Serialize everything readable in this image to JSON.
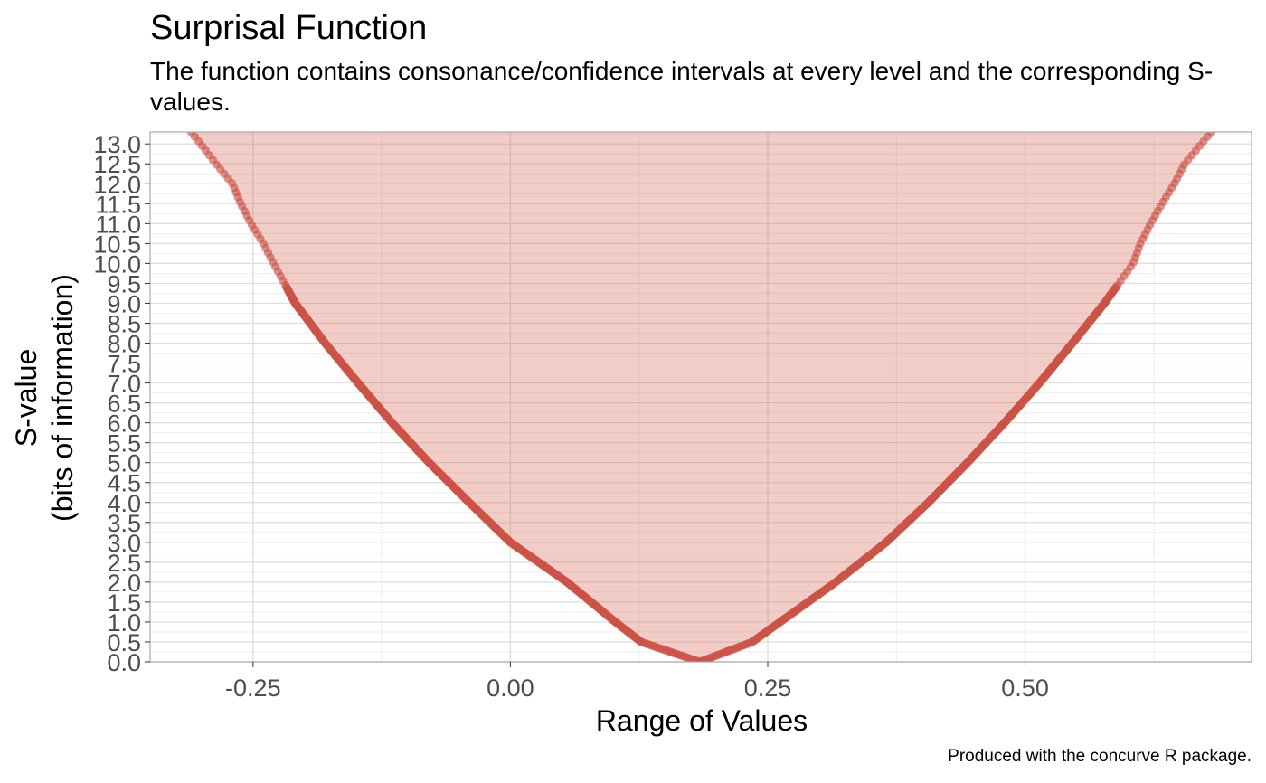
{
  "chart_data": {
    "type": "area",
    "title": "Surprisal Function",
    "subtitle": "The function contains consonance/confidence intervals at every level and the corresponding S-values.",
    "xlabel": "Range of Values",
    "ylabel_line1": "S-value",
    "ylabel_line2": "(bits of information)",
    "caption": "Produced with the concurve R package.",
    "xlim": [
      -0.35,
      0.72
    ],
    "ylim": [
      0,
      13.3
    ],
    "x_ticks": [
      -0.25,
      0.0,
      0.25,
      0.5
    ],
    "x_tick_labels": [
      "-0.25",
      "0.00",
      "0.25",
      "0.50"
    ],
    "y_ticks": [
      0,
      0.5,
      1,
      1.5,
      2,
      2.5,
      3,
      3.5,
      4,
      4.5,
      5,
      5.5,
      6,
      6.5,
      7,
      7.5,
      8,
      8.5,
      9,
      9.5,
      10,
      10.5,
      11,
      11.5,
      12,
      12.5,
      13
    ],
    "y_tick_labels": [
      "0.0",
      "0.5",
      "1.0",
      "1.5",
      "2.0",
      "2.5",
      "3.0",
      "3.5",
      "4.0",
      "4.5",
      "5.0",
      "5.5",
      "6.0",
      "6.5",
      "7.0",
      "7.5",
      "8.0",
      "8.5",
      "9.0",
      "9.5",
      "10.0",
      "10.5",
      "11.0",
      "11.5",
      "12.0",
      "12.5",
      "13.0"
    ],
    "grid": true,
    "legend": "none",
    "series": [
      {
        "values": [
          {
            "s": 0.0,
            "lower": 0.184,
            "upper": 0.184
          },
          {
            "s": 0.5,
            "lower": 0.127,
            "upper": 0.235
          },
          {
            "s": 1.0,
            "lower": 0.102,
            "upper": 0.262
          },
          {
            "s": 2.0,
            "lower": 0.055,
            "upper": 0.316
          },
          {
            "s": 3.0,
            "lower": 0.0,
            "upper": 0.365
          },
          {
            "s": 4.0,
            "lower": -0.04,
            "upper": 0.406
          },
          {
            "s": 5.0,
            "lower": -0.079,
            "upper": 0.444
          },
          {
            "s": 6.0,
            "lower": -0.115,
            "upper": 0.48
          },
          {
            "s": 7.0,
            "lower": -0.148,
            "upper": 0.514
          },
          {
            "s": 8.0,
            "lower": -0.18,
            "upper": 0.546
          },
          {
            "s": 9.0,
            "lower": -0.209,
            "upper": 0.577
          },
          {
            "s": 10.0,
            "lower": -0.23,
            "upper": 0.605
          },
          {
            "s": 10.5,
            "lower": -0.24,
            "upper": 0.612
          },
          {
            "s": 11.0,
            "lower": -0.252,
            "upper": 0.622
          },
          {
            "s": 11.5,
            "lower": -0.262,
            "upper": 0.633
          },
          {
            "s": 12.0,
            "lower": -0.27,
            "upper": 0.645
          },
          {
            "s": 12.5,
            "lower": -0.286,
            "upper": 0.655
          },
          {
            "s": 13.3,
            "lower": -0.31,
            "upper": 0.681
          }
        ]
      }
    ],
    "colors": {
      "fill": "#d45a4a",
      "points": "#cd5346",
      "grid": "#dedede",
      "border": "#a8a8a8"
    }
  }
}
